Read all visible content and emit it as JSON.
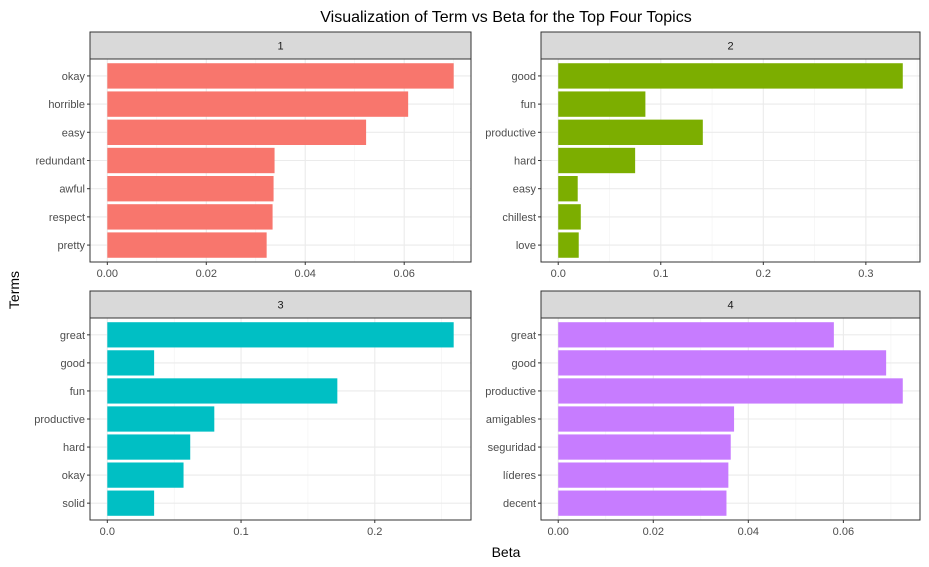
{
  "chart_data": {
    "type": "bar",
    "orientation": "horizontal",
    "title": "Visualization of Term vs Beta for the Top Four Topics",
    "xlabel": "Beta",
    "ylabel": "Terms",
    "grid": true,
    "legend": "none",
    "facets": [
      {
        "label": "1",
        "color": "#F8766D",
        "terms": [
          "okay",
          "horrible",
          "easy",
          "redundant",
          "awful",
          "respect",
          "pretty"
        ],
        "values": [
          0.07,
          0.0608,
          0.0523,
          0.0338,
          0.0336,
          0.0334,
          0.0322
        ],
        "xlim": [
          -0.0035,
          0.0735
        ],
        "xticks": [
          0,
          0.02,
          0.04,
          0.06
        ],
        "xtick_labels": [
          "0.00",
          "0.02",
          "0.04",
          "0.06"
        ]
      },
      {
        "label": "2",
        "color": "#7CAE00",
        "terms": [
          "good",
          "fun",
          "productive",
          "hard",
          "easy",
          "chillest",
          "love"
        ],
        "values": [
          0.336,
          0.085,
          0.141,
          0.075,
          0.019,
          0.022,
          0.02
        ],
        "xlim": [
          -0.0168,
          0.3528
        ],
        "xticks": [
          0,
          0.1,
          0.2,
          0.3
        ],
        "xtick_labels": [
          "0.0",
          "0.1",
          "0.2",
          "0.3"
        ]
      },
      {
        "label": "3",
        "color": "#00BFC4",
        "terms": [
          "great",
          "good",
          "fun",
          "productive",
          "hard",
          "okay",
          "solid"
        ],
        "values": [
          0.259,
          0.035,
          0.172,
          0.08,
          0.062,
          0.057,
          0.035
        ],
        "xlim": [
          -0.01295,
          0.27195
        ],
        "xticks": [
          0,
          0.1,
          0.2
        ],
        "xtick_labels": [
          "0.0",
          "0.1",
          "0.2"
        ]
      },
      {
        "label": "4",
        "color": "#C77CFF",
        "terms": [
          "great",
          "good",
          "productive",
          "amigables",
          "seguridad",
          "líderes",
          "decent"
        ],
        "values": [
          0.058,
          0.069,
          0.0725,
          0.037,
          0.0363,
          0.0358,
          0.0354
        ],
        "xlim": [
          -0.003625,
          0.076125
        ],
        "xticks": [
          0,
          0.02,
          0.04,
          0.06
        ],
        "xtick_labels": [
          "0.00",
          "0.02",
          "0.04",
          "0.06"
        ]
      }
    ]
  }
}
